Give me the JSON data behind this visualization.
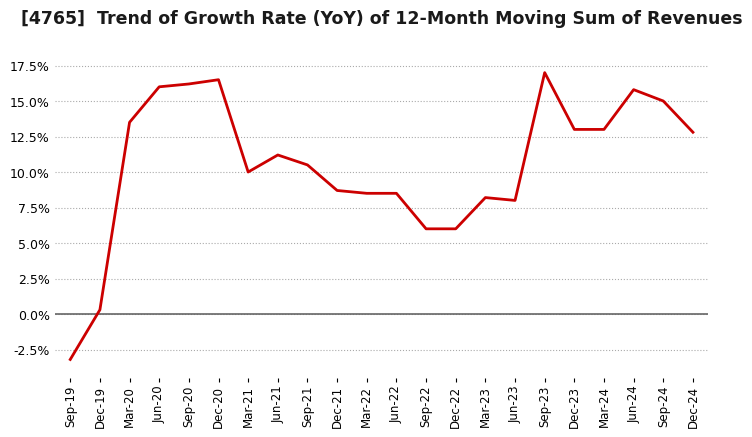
{
  "title": "[4765]  Trend of Growth Rate (YoY) of 12-Month Moving Sum of Revenues",
  "title_fontsize": 12.5,
  "x_labels": [
    "Sep-19",
    "Dec-19",
    "Mar-20",
    "Jun-20",
    "Sep-20",
    "Dec-20",
    "Mar-21",
    "Jun-21",
    "Sep-21",
    "Dec-21",
    "Mar-22",
    "Jun-22",
    "Sep-22",
    "Dec-22",
    "Mar-23",
    "Jun-23",
    "Sep-23",
    "Dec-23",
    "Mar-24",
    "Jun-24",
    "Sep-24",
    "Dec-24"
  ],
  "y_values": [
    -3.2,
    0.3,
    13.5,
    16.0,
    16.2,
    16.5,
    10.0,
    11.2,
    10.5,
    8.7,
    8.5,
    8.5,
    6.0,
    6.0,
    8.2,
    8.0,
    17.0,
    13.0,
    13.0,
    15.8,
    15.0,
    12.8
  ],
  "line_color": "#cc0000",
  "background_color": "#ffffff",
  "grid_color": "#aaaaaa",
  "zero_line_color": "#666666",
  "ylim": [
    -4.5,
    19.5
  ],
  "yticks": [
    -2.5,
    0.0,
    2.5,
    5.0,
    7.5,
    10.0,
    12.5,
    15.0,
    17.5
  ]
}
